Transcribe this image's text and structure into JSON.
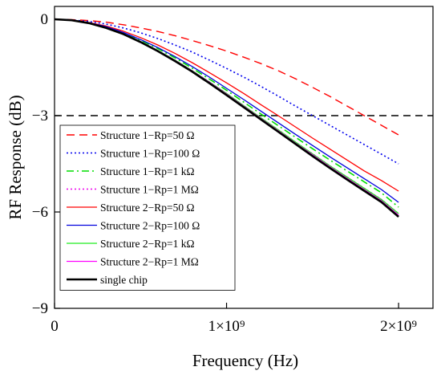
{
  "chart_data": {
    "type": "line",
    "title": "",
    "xlabel": "Frequency (Hz)",
    "ylabel": "RF Response (dB)",
    "xlim": [
      0,
      2200000000
    ],
    "ylim": [
      -9,
      0.4
    ],
    "x_ticks": [
      {
        "value": 0,
        "label": "0"
      },
      {
        "value": 1000000000,
        "label": "1×10⁹"
      },
      {
        "value": 2000000000,
        "label": "2×10⁹"
      }
    ],
    "y_ticks": [
      {
        "value": 0,
        "label": "0"
      },
      {
        "value": -3,
        "label": "−3"
      },
      {
        "value": -6,
        "label": "−6"
      },
      {
        "value": -9,
        "label": "−9"
      }
    ],
    "grid": false,
    "legend_position": "bottom-left",
    "reference_lines": [
      {
        "axis": "y",
        "value": -3,
        "style": "dashed",
        "color": "#000000"
      }
    ],
    "x": [
      0,
      100000000,
      200000000,
      300000000,
      400000000,
      500000000,
      600000000,
      700000000,
      800000000,
      900000000,
      1000000000,
      1100000000,
      1200000000,
      1300000000,
      1400000000,
      1500000000,
      1600000000,
      1700000000,
      1800000000,
      1900000000,
      2000000000
    ],
    "series": [
      {
        "name": "Structure 1−Rp=50 Ω",
        "color": "#ff0000",
        "style": "dashed",
        "values": [
          0,
          -0.01,
          -0.04,
          -0.09,
          -0.17,
          -0.27,
          -0.38,
          -0.51,
          -0.66,
          -0.82,
          -0.99,
          -1.18,
          -1.38,
          -1.6,
          -1.85,
          -2.12,
          -2.4,
          -2.7,
          -3.0,
          -3.3,
          -3.6
        ]
      },
      {
        "name": "Structure 1−Rp=100 Ω",
        "color": "#0000ee",
        "style": "dotted",
        "values": [
          0,
          -0.02,
          -0.07,
          -0.15,
          -0.27,
          -0.42,
          -0.6,
          -0.8,
          -1.02,
          -1.27,
          -1.53,
          -1.8,
          -2.09,
          -2.39,
          -2.7,
          -3.0,
          -3.3,
          -3.6,
          -3.9,
          -4.2,
          -4.5
        ]
      },
      {
        "name": "Structure 1−Rp=1 kΩ",
        "color": "#00dd00",
        "style": "dashdot",
        "values": [
          0,
          -0.03,
          -0.11,
          -0.24,
          -0.42,
          -0.65,
          -0.91,
          -1.2,
          -1.52,
          -1.86,
          -2.21,
          -2.58,
          -2.95,
          -3.31,
          -3.67,
          -4.03,
          -4.38,
          -4.72,
          -5.06,
          -5.4,
          -5.85
        ]
      },
      {
        "name": "Structure 1−Rp=1 MΩ",
        "color": "#ee00ee",
        "style": "dotted",
        "values": [
          0,
          -0.03,
          -0.12,
          -0.26,
          -0.45,
          -0.69,
          -0.97,
          -1.27,
          -1.6,
          -1.95,
          -2.31,
          -2.69,
          -3.07,
          -3.44,
          -3.82,
          -4.19,
          -4.56,
          -4.91,
          -5.26,
          -5.61,
          -6.05
        ]
      },
      {
        "name": "Structure 2−Rp=50 Ω",
        "color": "#ff0000",
        "style": "solid",
        "values": [
          0,
          -0.03,
          -0.1,
          -0.21,
          -0.37,
          -0.57,
          -0.8,
          -1.06,
          -1.35,
          -1.66,
          -1.98,
          -2.31,
          -2.66,
          -3.0,
          -3.35,
          -3.7,
          -4.04,
          -4.38,
          -4.72,
          -5.02,
          -5.35
        ]
      },
      {
        "name": "Structure 2−Rp=100 Ω",
        "color": "#0000dd",
        "style": "solid",
        "values": [
          0,
          -0.03,
          -0.11,
          -0.23,
          -0.41,
          -0.63,
          -0.88,
          -1.16,
          -1.47,
          -1.8,
          -2.15,
          -2.5,
          -2.86,
          -3.22,
          -3.58,
          -3.93,
          -4.28,
          -4.62,
          -4.96,
          -5.3,
          -5.7
        ]
      },
      {
        "name": "Structure 2−Rp=1 kΩ",
        "color": "#22ee22",
        "style": "solid",
        "values": [
          0,
          -0.03,
          -0.12,
          -0.26,
          -0.45,
          -0.69,
          -0.97,
          -1.27,
          -1.6,
          -1.95,
          -2.31,
          -2.69,
          -3.07,
          -3.44,
          -3.82,
          -4.19,
          -4.56,
          -4.91,
          -5.26,
          -5.61,
          -6.05
        ]
      },
      {
        "name": "Structure 2−Rp=1 MΩ",
        "color": "#ff00ff",
        "style": "solid",
        "values": [
          0,
          -0.03,
          -0.12,
          -0.26,
          -0.46,
          -0.7,
          -0.98,
          -1.28,
          -1.61,
          -1.96,
          -2.33,
          -2.71,
          -3.09,
          -3.47,
          -3.85,
          -4.22,
          -4.59,
          -4.95,
          -5.3,
          -5.65,
          -6.1
        ]
      },
      {
        "name": "single chip",
        "color": "#000000",
        "style": "solid-thick",
        "values": [
          0,
          -0.03,
          -0.12,
          -0.27,
          -0.46,
          -0.71,
          -0.99,
          -1.3,
          -1.63,
          -1.99,
          -2.36,
          -2.74,
          -3.12,
          -3.5,
          -3.88,
          -4.26,
          -4.63,
          -4.99,
          -5.34,
          -5.69,
          -6.15
        ]
      }
    ]
  }
}
